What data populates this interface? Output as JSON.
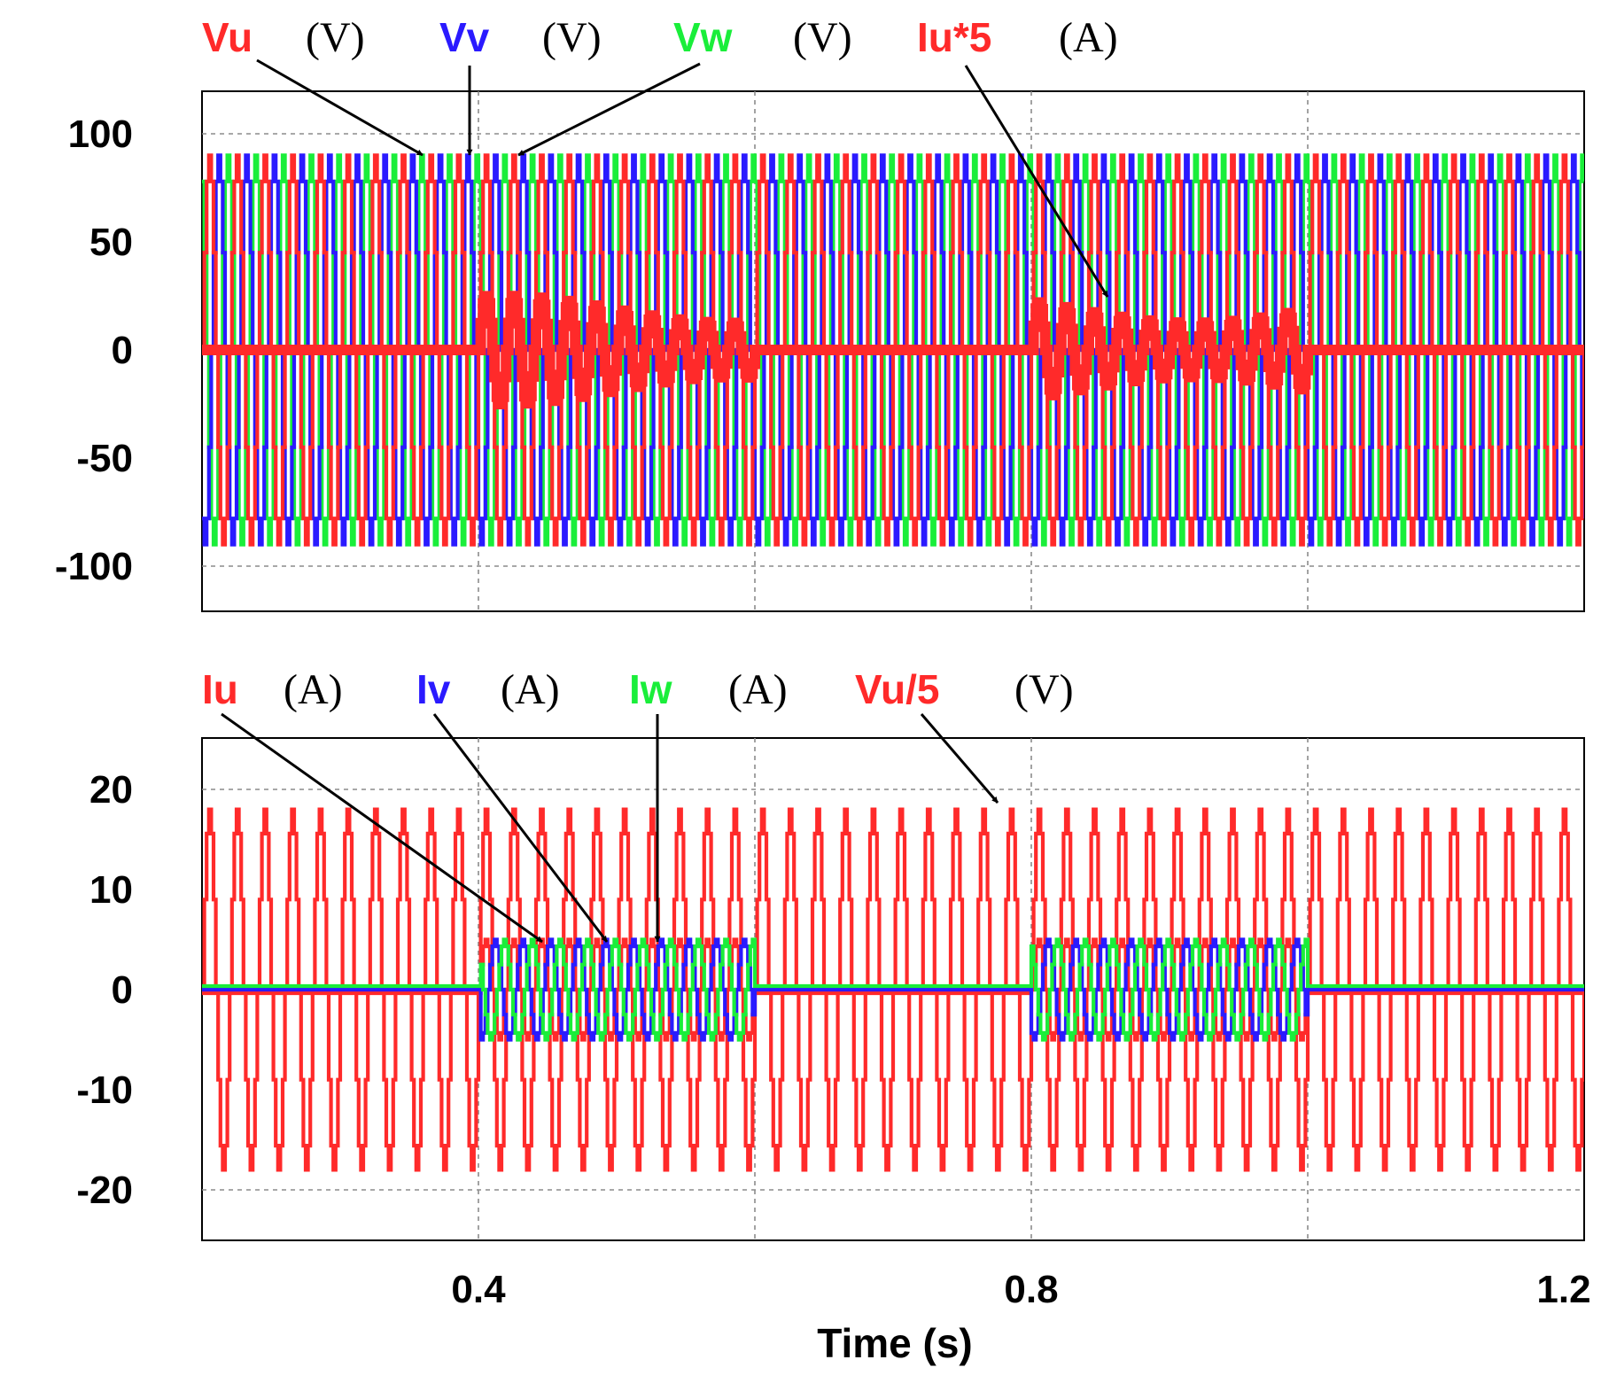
{
  "chart_data": [
    {
      "type": "line",
      "panel": "top",
      "xlim": [
        0.2,
        1.2
      ],
      "ylim": [
        -120,
        120
      ],
      "yticks": [
        100,
        50,
        0,
        -50,
        -100
      ],
      "ytick_labels": [
        "100",
        "50",
        "0",
        "-50",
        "-100"
      ],
      "xgrid": [
        0.4,
        0.6,
        0.8,
        1.0
      ],
      "ygrid": [
        100,
        -100
      ],
      "series": [
        {
          "name": "Vu",
          "unit": "(V)",
          "color": "#ff2a2a",
          "amplitude": 90,
          "phase_deg": 0
        },
        {
          "name": "Vv",
          "unit": "(V)",
          "color": "#2a1aff",
          "amplitude": 90,
          "phase_deg": -120
        },
        {
          "name": "Vw",
          "unit": "(V)",
          "color": "#1aee3a",
          "amplitude": 90,
          "phase_deg": 120
        },
        {
          "name": "Iu*5",
          "unit": "(A)",
          "color": "#ff2a2a",
          "amplitude": 25,
          "active_windows": [
            [
              0.4,
              0.6
            ],
            [
              0.8,
              1.0
            ]
          ],
          "idle_level": 0
        }
      ]
    },
    {
      "type": "line",
      "panel": "bottom",
      "xlim": [
        0.2,
        1.2
      ],
      "ylim": [
        -24,
        24
      ],
      "yticks": [
        20,
        10,
        0,
        -10,
        -20
      ],
      "ytick_labels": [
        "20",
        "10",
        "0",
        "-10",
        "-20"
      ],
      "xticks": [
        0.4,
        0.8,
        1.2
      ],
      "xtick_labels": [
        "0.4",
        "0.8",
        "1.2"
      ],
      "xlabel": "Time (s)",
      "xgrid": [
        0.4,
        0.6,
        0.8,
        1.0
      ],
      "ygrid": [
        20,
        -20
      ],
      "series": [
        {
          "name": "Iu",
          "unit": "(A)",
          "color": "#ff2a2a",
          "amplitude": 5,
          "active_windows": [
            [
              0.4,
              0.6
            ],
            [
              0.8,
              1.0
            ]
          ],
          "idle_level": 0
        },
        {
          "name": "Iv",
          "unit": "(A)",
          "color": "#2a1aff",
          "amplitude": 5,
          "active_windows": [
            [
              0.4,
              0.6
            ],
            [
              0.8,
              1.0
            ]
          ],
          "idle_level": 0
        },
        {
          "name": "Iw",
          "unit": "(A)",
          "color": "#1aee3a",
          "amplitude": 5,
          "active_windows": [
            [
              0.4,
              0.6
            ],
            [
              0.8,
              1.0
            ]
          ],
          "idle_level": 0
        },
        {
          "name": "Vu/5",
          "unit": "(V)",
          "color": "#ff2a2a",
          "amplitude": 18
        }
      ]
    }
  ]
}
